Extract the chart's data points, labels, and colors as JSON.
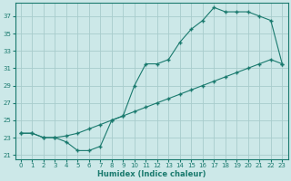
{
  "xlabel": "Humidex (Indice chaleur)",
  "background_color": "#cce8e8",
  "line_color": "#1a7a6e",
  "grid_color": "#a8cccc",
  "xlim": [
    -0.5,
    23.5
  ],
  "ylim": [
    20.5,
    38.5
  ],
  "xticks": [
    0,
    1,
    2,
    3,
    4,
    5,
    6,
    7,
    8,
    9,
    10,
    11,
    12,
    13,
    14,
    15,
    16,
    17,
    18,
    19,
    20,
    21,
    22,
    23
  ],
  "yticks": [
    21,
    23,
    25,
    27,
    29,
    31,
    33,
    35,
    37
  ],
  "line1_x": [
    0,
    1,
    2,
    3,
    4,
    5,
    6,
    7,
    8,
    9,
    10,
    11,
    12,
    13,
    14,
    15,
    16,
    17,
    18,
    19,
    20,
    21,
    22,
    23
  ],
  "line1_y": [
    23.5,
    23.5,
    23.0,
    23.0,
    22.5,
    21.5,
    21.5,
    22.0,
    25.0,
    25.5,
    29.0,
    31.5,
    31.5,
    32.0,
    34.0,
    35.5,
    36.5,
    38.0,
    37.5,
    37.5,
    37.5,
    37.0,
    36.5,
    31.5
  ],
  "line2_x": [
    0,
    1,
    2,
    3,
    4,
    5,
    6,
    7,
    8,
    9,
    10,
    11,
    12,
    13,
    14,
    15,
    16,
    17,
    18,
    19,
    20,
    21,
    22,
    23
  ],
  "line2_y": [
    23.5,
    23.5,
    23.0,
    23.0,
    23.2,
    23.5,
    24.0,
    24.5,
    25.0,
    25.5,
    26.0,
    26.5,
    27.0,
    27.5,
    28.0,
    28.5,
    29.0,
    29.5,
    30.0,
    30.5,
    31.0,
    31.5,
    32.0,
    31.5
  ]
}
